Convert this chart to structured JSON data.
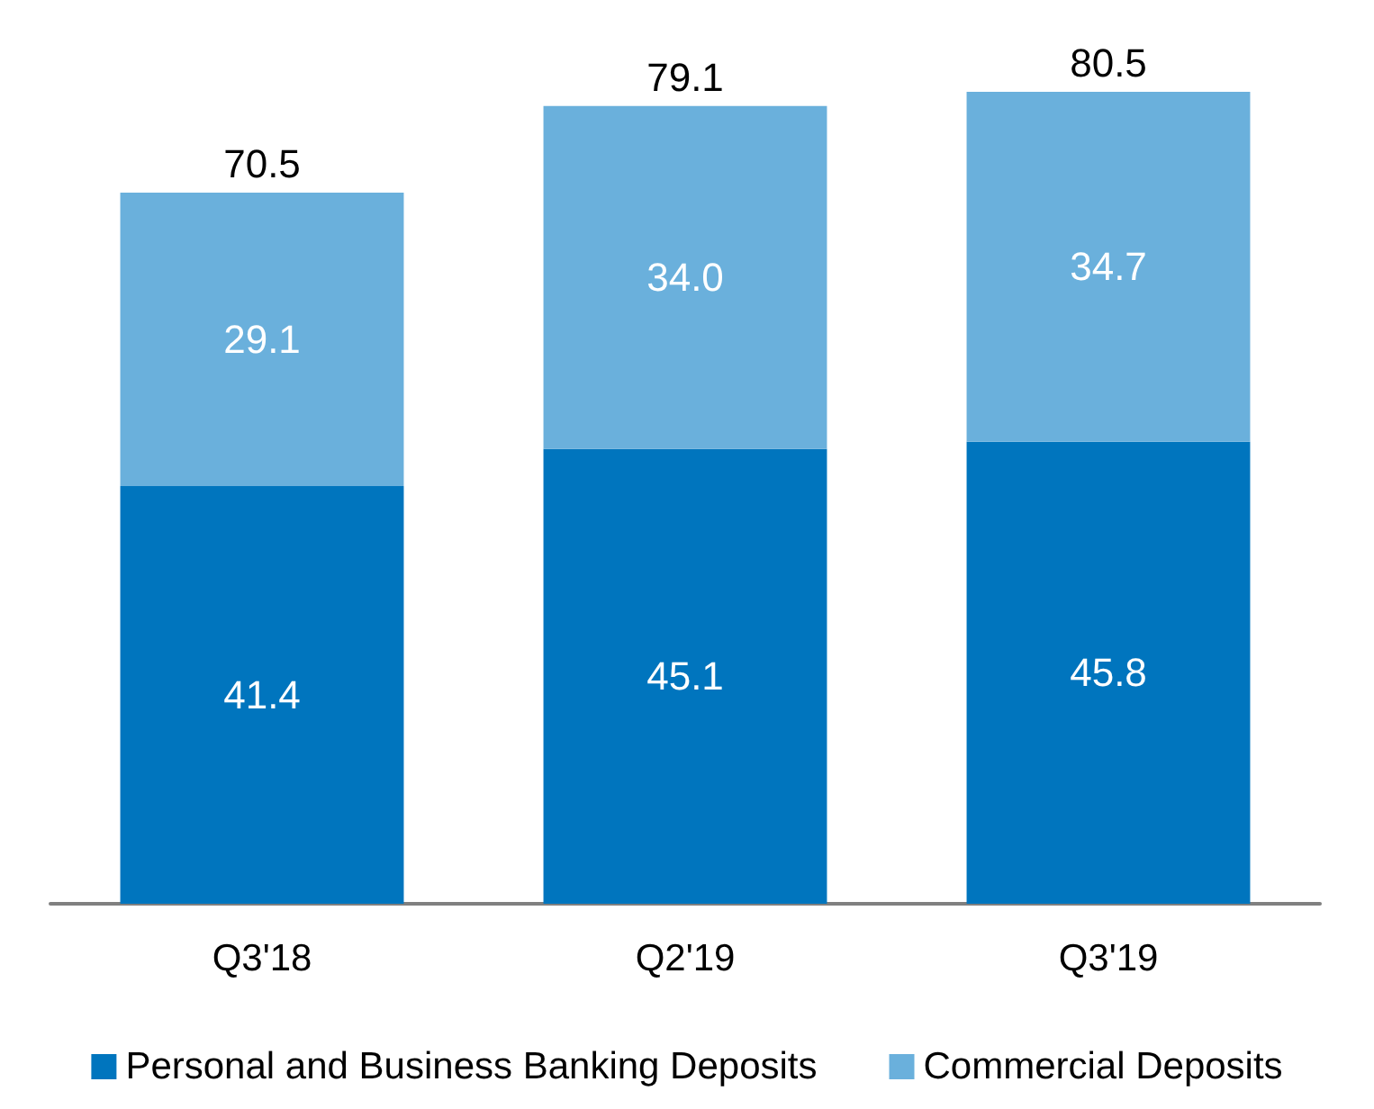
{
  "chart_data": {
    "type": "bar",
    "stacked": true,
    "categories": [
      "Q3'18",
      "Q2'19",
      "Q3'19"
    ],
    "series": [
      {
        "name": "Personal and Business Banking Deposits",
        "color": "#0075be",
        "values": [
          41.4,
          45.1,
          45.8
        ]
      },
      {
        "name": "Commercial Deposits",
        "color": "#6ab0dc",
        "values": [
          29.1,
          34.0,
          34.7
        ],
        "value_labels": [
          "29.1",
          "34.0",
          "34.7"
        ]
      }
    ],
    "data_labels": true,
    "totals": [
      "70.5",
      "79.1",
      "80.5"
    ],
    "legend": "bottom"
  }
}
